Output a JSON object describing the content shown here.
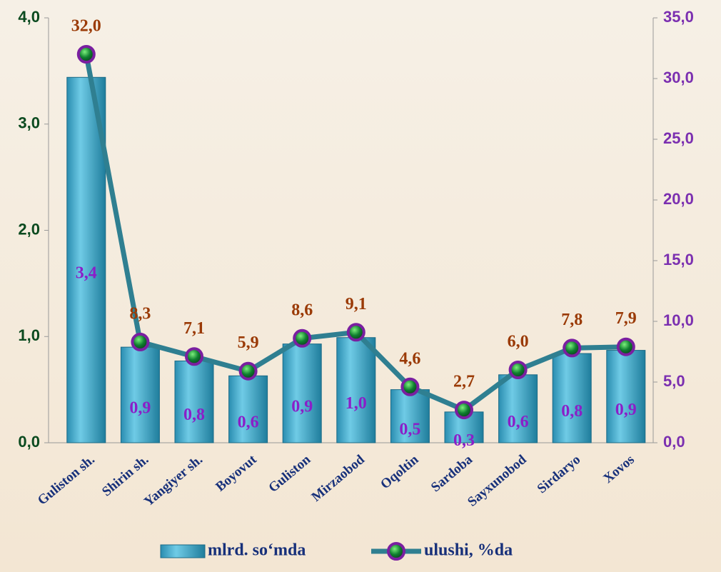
{
  "chart_data": {
    "type": "bar",
    "categories": [
      "Guliston sh.",
      "Shirin sh.",
      "Yangiyer sh.",
      "Boyovut",
      "Guliston",
      "Mirzaobod",
      "Oqoltin",
      "Sardoba",
      "Sayxunobod",
      "Sirdaryo",
      "Xovos"
    ],
    "series": [
      {
        "name": "mlrd. so‘mda",
        "type": "bar",
        "color": "#3fa9c9",
        "values": [
          3.44,
          0.9,
          0.77,
          0.63,
          0.93,
          0.99,
          0.5,
          0.29,
          0.64,
          0.84,
          0.87
        ],
        "value_labels": [
          "3,4",
          "0,9",
          "0,8",
          "0,6",
          "0,9",
          "1,0",
          "0,5",
          "0,3",
          "0,6",
          "0,8",
          "0,9"
        ]
      },
      {
        "name": "ulushi, %da",
        "type": "line",
        "axis": "y2",
        "color": "#2f7f91",
        "values": [
          32.0,
          8.3,
          7.1,
          5.9,
          8.6,
          9.1,
          4.6,
          2.7,
          6.0,
          7.8,
          7.9
        ],
        "value_labels": [
          "32,0",
          "8,3",
          "7,1",
          "5,9",
          "8,6",
          "9,1",
          "4,6",
          "2,7",
          "6,0",
          "7,8",
          "7,9"
        ]
      }
    ],
    "ylim": [
      0,
      4
    ],
    "yticks": [
      {
        "value": 0,
        "label": "0,0"
      },
      {
        "value": 1,
        "label": "1,0"
      },
      {
        "value": 2,
        "label": "2,0"
      },
      {
        "value": 3,
        "label": "3,0"
      },
      {
        "value": 4,
        "label": "4,0"
      }
    ],
    "y2lim": [
      0,
      35
    ],
    "y2ticks": [
      {
        "value": 0,
        "label": "0,0"
      },
      {
        "value": 5,
        "label": "5,0"
      },
      {
        "value": 10,
        "label": "10,0"
      },
      {
        "value": 15,
        "label": "15,0"
      },
      {
        "value": 20,
        "label": "20,0"
      },
      {
        "value": 25,
        "label": "25,0"
      },
      {
        "value": 30,
        "label": "30,0"
      },
      {
        "value": 35,
        "label": "35,0"
      }
    ],
    "legend": "bottom"
  }
}
